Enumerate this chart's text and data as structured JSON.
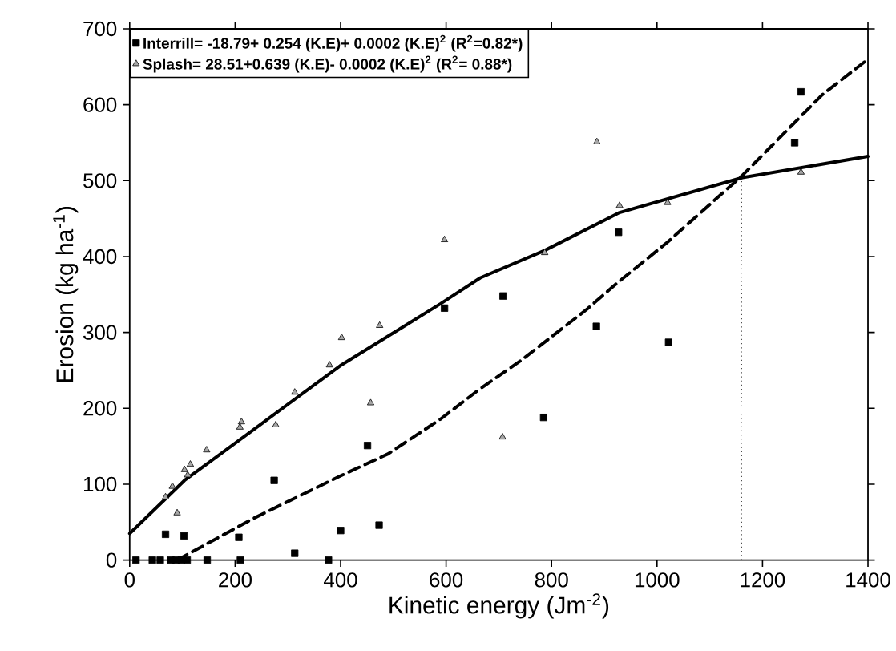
{
  "chart_data": {
    "type": "scatter",
    "xlabel": "Kinetic energy (Jm$^{-2}$)",
    "ylabel": "Erosion (kg ha$^{-1}$)",
    "xlim": [
      0,
      1400
    ],
    "ylim": [
      0,
      700
    ],
    "xticks": [
      0,
      200,
      400,
      600,
      800,
      1000,
      1200,
      1400
    ],
    "yticks": [
      0,
      100,
      200,
      300,
      400,
      500,
      600,
      700
    ],
    "grid": false,
    "legend": "top left",
    "series": [
      {
        "name": "Interrill= -18.79+ 0.254 (K.E)+ 0.0002 (K.E)$^{2}$ (R$^{2}$=0.82*)",
        "marker": "square",
        "color": "#000000",
        "x": [
          12,
          43,
          58,
          68,
          78,
          88,
          98,
          103,
          109,
          147,
          207,
          210,
          274,
          313,
          377,
          400,
          451,
          473,
          597,
          708,
          785,
          885,
          927,
          1022,
          1261,
          1273
        ],
        "values": [
          0,
          0,
          0,
          34,
          0,
          0,
          0,
          32,
          0,
          0,
          30,
          0,
          105,
          9,
          0,
          39,
          151,
          46,
          332,
          348,
          188,
          308,
          432,
          287,
          550,
          617
        ]
      },
      {
        "type": "line",
        "line_style": "dashed",
        "color": "#000000",
        "x": [
          90,
          235,
          400,
          490,
          590,
          665,
          742,
          868,
          919,
          1020,
          1162,
          1313,
          1400
        ],
        "values": [
          0,
          55,
          111,
          140,
          186,
          226,
          263,
          331,
          362,
          419,
          507,
          613,
          660
        ]
      },
      {
        "name": "Splash= 28.51+0.639 (K.E)- 0.0002 (K.E)$^{2}$ (R$^{2}$= 0.88*)",
        "marker": "triangle",
        "color": "#a6a6a6",
        "x": [
          68,
          81,
          90,
          104,
          110,
          115,
          146,
          209,
          212,
          277,
          313,
          379,
          402,
          457,
          474,
          597,
          707,
          787,
          886,
          929,
          1020,
          1273
        ],
        "values": [
          83,
          97,
          62,
          119,
          112,
          126,
          145,
          175,
          182,
          178,
          221,
          257,
          293,
          207,
          309,
          422,
          162,
          405,
          551,
          467,
          471,
          511
        ]
      },
      {
        "type": "line",
        "line_style": "solid",
        "color": "#000000",
        "x": [
          0,
          104,
          235,
          399,
          590,
          665,
          787,
          929,
          1162,
          1400
        ],
        "values": [
          35,
          105,
          172,
          256,
          338,
          372,
          408,
          458,
          504,
          532
        ]
      }
    ],
    "ref_lines": [
      {
        "axis": "x",
        "value": 1160,
        "line_style": "dotted",
        "color": "#000000"
      }
    ]
  }
}
